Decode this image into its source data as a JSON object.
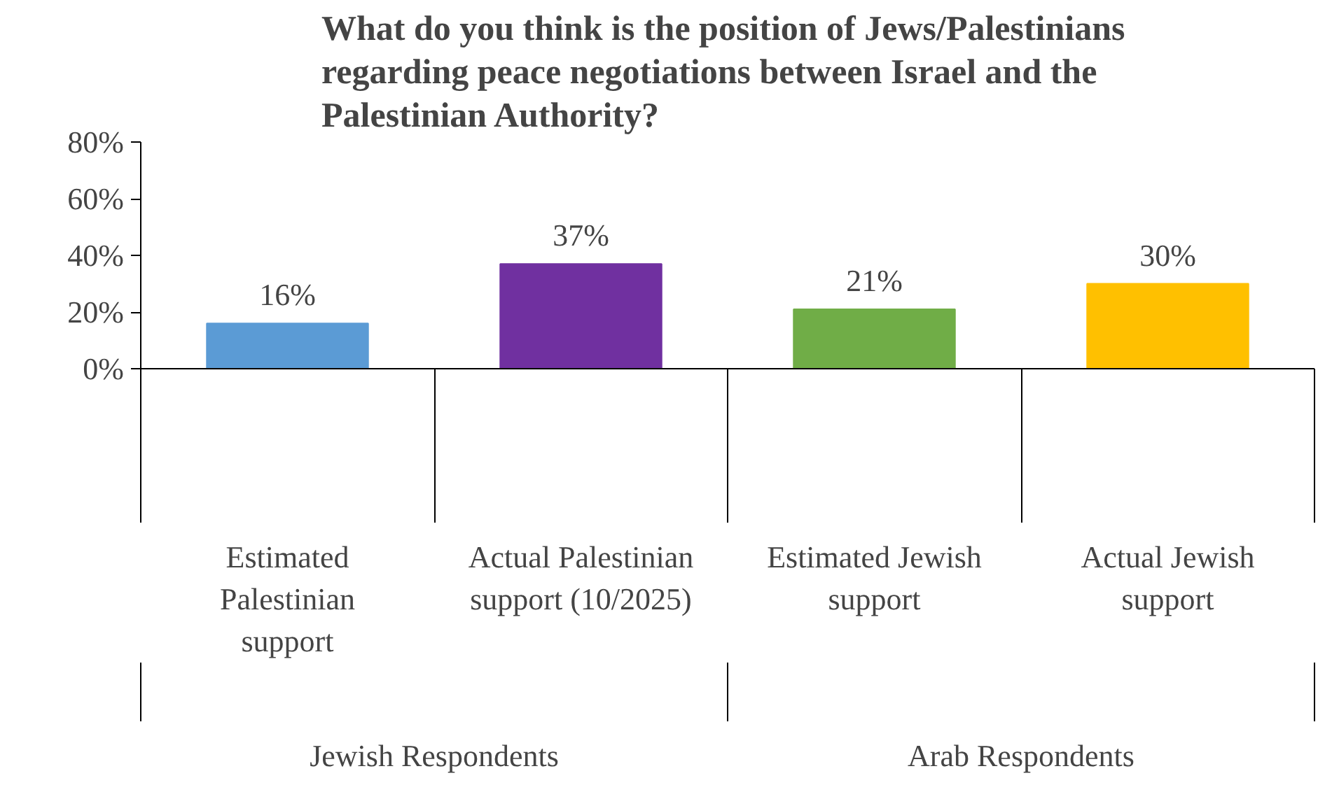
{
  "chart_data": {
    "type": "bar",
    "title": "What do you think is the position of  Jews/Palestinians\nregarding peace negotiations between Israel and the\nPalestinian Authority?",
    "categories": [
      "Estimated\nPalestinian\nsupport",
      "Actual Palestinian\nsupport (10/2025)",
      "Estimated Jewish\nsupport",
      "Actual Jewish\nsupport"
    ],
    "values": [
      16,
      37,
      21,
      30
    ],
    "colors": [
      "#5b9bd5",
      "#7030a0",
      "#70ad47",
      "#ffc000"
    ],
    "value_labels": [
      "16%",
      "37%",
      "21%",
      "30%"
    ],
    "annotations": [
      "Jewish Respondents",
      "Arab Respondents"
    ],
    "ylim": [
      0,
      80
    ],
    "yticks": [
      {
        "value": 0,
        "label": "0%"
      },
      {
        "value": 20,
        "label": "20%"
      },
      {
        "value": 40,
        "label": "40%"
      },
      {
        "value": 60,
        "label": "60%"
      },
      {
        "value": 80,
        "label": "80%"
      }
    ],
    "grid": false
  }
}
